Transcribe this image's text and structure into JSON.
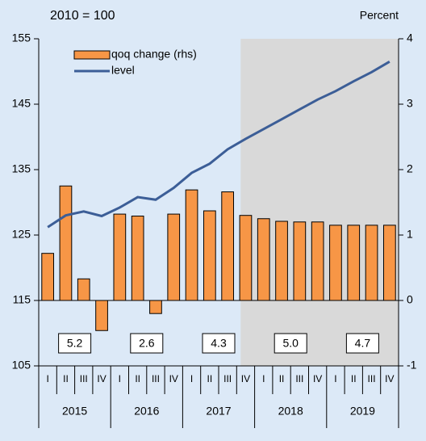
{
  "chart_data": {
    "type": "bar_line",
    "left_label": "2010 = 100",
    "right_label": "Percent",
    "categories": [
      "I",
      "II",
      "III",
      "IV",
      "I",
      "II",
      "III",
      "IV",
      "I",
      "II",
      "III",
      "IV",
      "I",
      "II",
      "III",
      "IV",
      "I",
      "II",
      "III",
      "IV"
    ],
    "years": [
      "2015",
      "2016",
      "2017",
      "2018",
      "2019"
    ],
    "annual_labels": [
      "5.2",
      "2.6",
      "4.3",
      "5.0",
      "4.7"
    ],
    "series": [
      {
        "name": "qoq change (rhs)",
        "type": "bar",
        "axis": "y2",
        "color": "#f79646",
        "values": [
          0.72,
          1.75,
          0.33,
          -0.46,
          1.32,
          1.29,
          -0.2,
          1.32,
          1.69,
          1.37,
          1.66,
          1.3,
          1.25,
          1.21,
          1.2,
          1.2,
          1.15,
          1.15,
          1.15,
          1.15
        ]
      },
      {
        "name": "level",
        "type": "line",
        "color": "#3c5e97",
        "values": [
          126.2,
          128.0,
          128.6,
          127.9,
          129.2,
          130.8,
          130.4,
          132.2,
          134.5,
          135.9,
          138.1,
          139.7,
          141.2,
          142.7,
          144.2,
          145.7,
          147.0,
          148.5,
          149.9,
          151.5
        ]
      }
    ],
    "ylim": [
      105,
      155
    ],
    "yticks": [
      105,
      115,
      125,
      135,
      145,
      155
    ],
    "y2lim": [
      -1,
      4
    ],
    "y2ticks": [
      -1,
      0,
      1,
      2,
      3,
      4
    ]
  }
}
